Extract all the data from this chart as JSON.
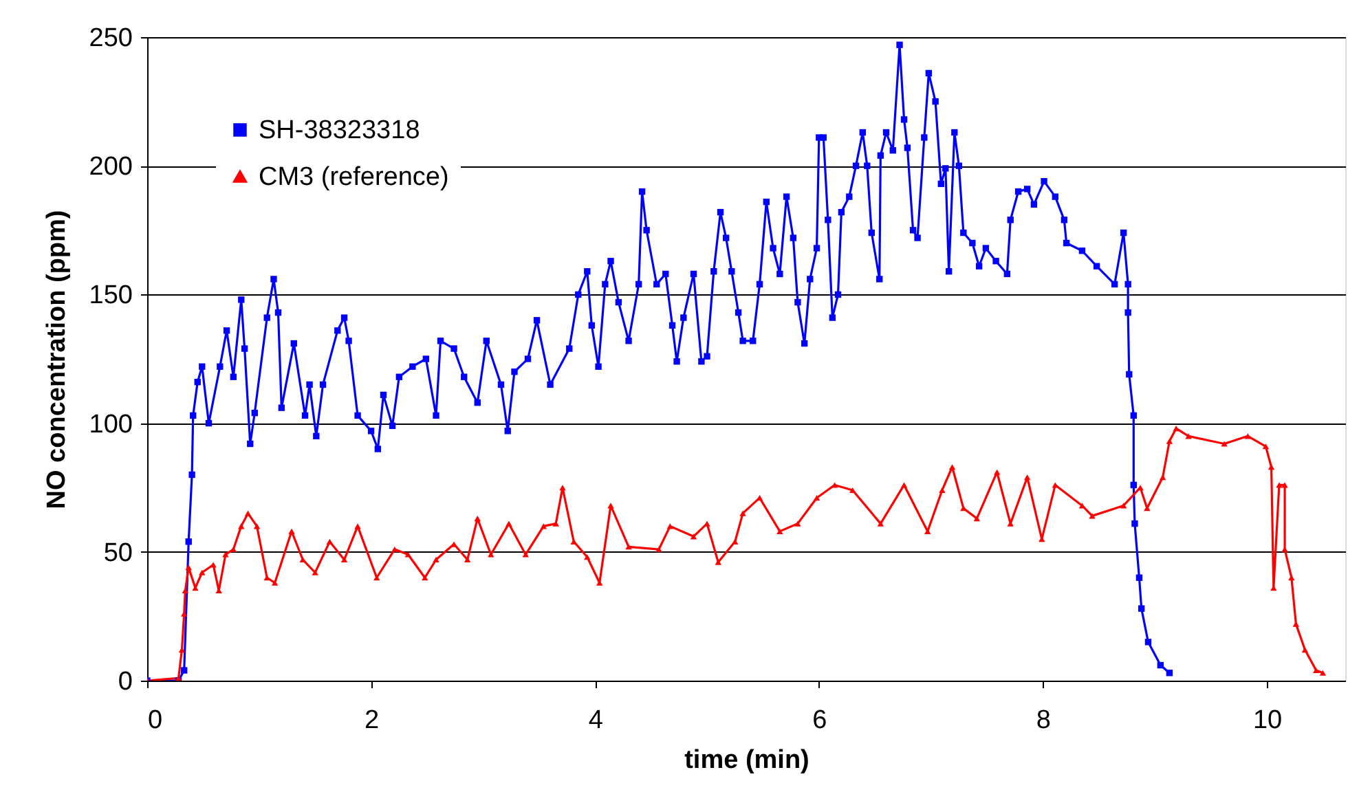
{
  "chart_data": {
    "type": "line",
    "xlabel": "time (min)",
    "ylabel": "NO concentration (ppm)",
    "xlim": [
      0,
      10.7
    ],
    "xticks": [
      0,
      2,
      4,
      6,
      8,
      10
    ],
    "ylim": [
      0,
      250
    ],
    "yticks": [
      0,
      50,
      100,
      150,
      200,
      250
    ],
    "grid": "y",
    "legend": "top left",
    "line_style": "solid",
    "series": [
      {
        "name": "SH-38323318",
        "color": "#0000ff",
        "marker": "square",
        "x": [
          0,
          0.28,
          0.33,
          0.37,
          0.4,
          0.41,
          0.45,
          0.49,
          0.55,
          0.65,
          0.71,
          0.77,
          0.84,
          0.87,
          0.92,
          0.96,
          1.07,
          1.13,
          1.17,
          1.2,
          1.31,
          1.41,
          1.45,
          1.51,
          1.57,
          1.7,
          1.76,
          1.8,
          1.88,
          2.0,
          2.06,
          2.11,
          2.19,
          2.25,
          2.37,
          2.49,
          2.58,
          2.62,
          2.74,
          2.83,
          2.95,
          3.03,
          3.16,
          3.22,
          3.28,
          3.4,
          3.48,
          3.6,
          3.77,
          3.85,
          3.93,
          3.97,
          4.03,
          4.09,
          4.14,
          4.21,
          4.3,
          4.39,
          4.42,
          4.46,
          4.55,
          4.63,
          4.69,
          4.73,
          4.79,
          4.88,
          4.95,
          5.0,
          5.06,
          5.12,
          5.17,
          5.22,
          5.28,
          5.32,
          5.41,
          5.47,
          5.53,
          5.59,
          5.65,
          5.71,
          5.77,
          5.81,
          5.87,
          5.92,
          5.98,
          6.0,
          6.04,
          6.08,
          6.12,
          6.17,
          6.2,
          6.27,
          6.33,
          6.39,
          6.43,
          6.47,
          6.54,
          6.55,
          6.6,
          6.66,
          6.72,
          6.76,
          6.79,
          6.84,
          6.88,
          6.94,
          6.98,
          7.04,
          7.09,
          7.13,
          7.16,
          7.21,
          7.25,
          7.29,
          7.37,
          7.43,
          7.49,
          7.58,
          7.68,
          7.71,
          7.78,
          7.86,
          7.92,
          8.01,
          8.11,
          8.19,
          8.21,
          8.35,
          8.48,
          8.64,
          8.72,
          8.76,
          8.76,
          8.77,
          8.81,
          8.81,
          8.82,
          8.86,
          8.88,
          8.94,
          9.05,
          9.13
        ],
        "values": [
          0,
          0,
          4,
          54,
          80,
          103,
          116,
          122,
          100,
          122,
          136,
          118,
          148,
          129,
          92,
          104,
          141,
          156,
          143,
          106,
          131,
          103,
          115,
          95,
          115,
          136,
          141,
          132,
          103,
          97,
          90,
          111,
          99,
          118,
          122,
          125,
          103,
          132,
          129,
          118,
          108,
          132,
          115,
          97,
          120,
          125,
          140,
          115,
          129,
          150,
          159,
          138,
          122,
          154,
          163,
          147,
          132,
          154,
          190,
          175,
          154,
          158,
          138,
          124,
          141,
          158,
          124,
          126,
          159,
          182,
          172,
          159,
          143,
          132,
          132,
          154,
          186,
          168,
          158,
          188,
          172,
          147,
          131,
          156,
          168,
          211,
          211,
          179,
          141,
          150,
          182,
          188,
          200,
          213,
          200,
          174,
          156,
          204,
          213,
          206,
          247,
          218,
          207,
          175,
          172,
          211,
          236,
          225,
          193,
          199,
          159,
          213,
          200,
          174,
          170,
          161,
          168,
          163,
          158,
          179,
          190,
          191,
          185,
          194,
          188,
          179,
          170,
          167,
          161,
          154,
          174,
          154,
          143,
          119,
          103,
          76,
          61,
          40,
          28,
          15,
          6,
          3
        ]
      },
      {
        "name": "CM3 (reference)",
        "color": "#ff0000",
        "marker": "triangle",
        "x": [
          0,
          0.28,
          0.31,
          0.33,
          0.34,
          0.37,
          0.43,
          0.49,
          0.59,
          0.64,
          0.7,
          0.77,
          0.84,
          0.9,
          0.98,
          1.07,
          1.14,
          1.29,
          1.39,
          1.5,
          1.63,
          1.76,
          1.88,
          2.05,
          2.21,
          2.33,
          2.48,
          2.58,
          2.74,
          2.86,
          2.95,
          3.07,
          3.23,
          3.38,
          3.54,
          3.65,
          3.71,
          3.81,
          3.93,
          4.04,
          4.14,
          4.3,
          4.57,
          4.67,
          4.88,
          5.0,
          5.1,
          5.25,
          5.32,
          5.47,
          5.65,
          5.81,
          5.98,
          6.14,
          6.3,
          6.55,
          6.76,
          6.97,
          7.1,
          7.19,
          7.29,
          7.41,
          7.59,
          7.71,
          7.86,
          7.99,
          8.11,
          8.35,
          8.44,
          8.72,
          8.87,
          8.93,
          9.07,
          9.13,
          9.19,
          9.3,
          9.62,
          9.83,
          9.99,
          10.04,
          10.06,
          10.11,
          10.16,
          10.16,
          10.22,
          10.26,
          10.34,
          10.44,
          10.5
        ],
        "values": [
          0,
          1,
          12,
          26,
          35,
          44,
          36,
          42,
          45,
          35,
          49,
          51,
          60,
          65,
          60,
          40,
          38,
          58,
          47,
          42,
          54,
          47,
          60,
          40,
          51,
          49,
          40,
          47,
          53,
          47,
          63,
          49,
          61,
          49,
          60,
          61,
          75,
          54,
          48,
          38,
          68,
          52,
          51,
          60,
          56,
          61,
          46,
          54,
          65,
          71,
          58,
          61,
          71,
          76,
          74,
          61,
          76,
          58,
          74,
          83,
          67,
          63,
          81,
          61,
          79,
          55,
          76,
          68,
          64,
          68,
          75,
          67,
          79,
          93,
          98,
          95,
          92,
          95,
          91,
          83,
          36,
          76,
          76,
          51,
          40,
          22,
          12,
          4,
          3
        ]
      }
    ]
  }
}
